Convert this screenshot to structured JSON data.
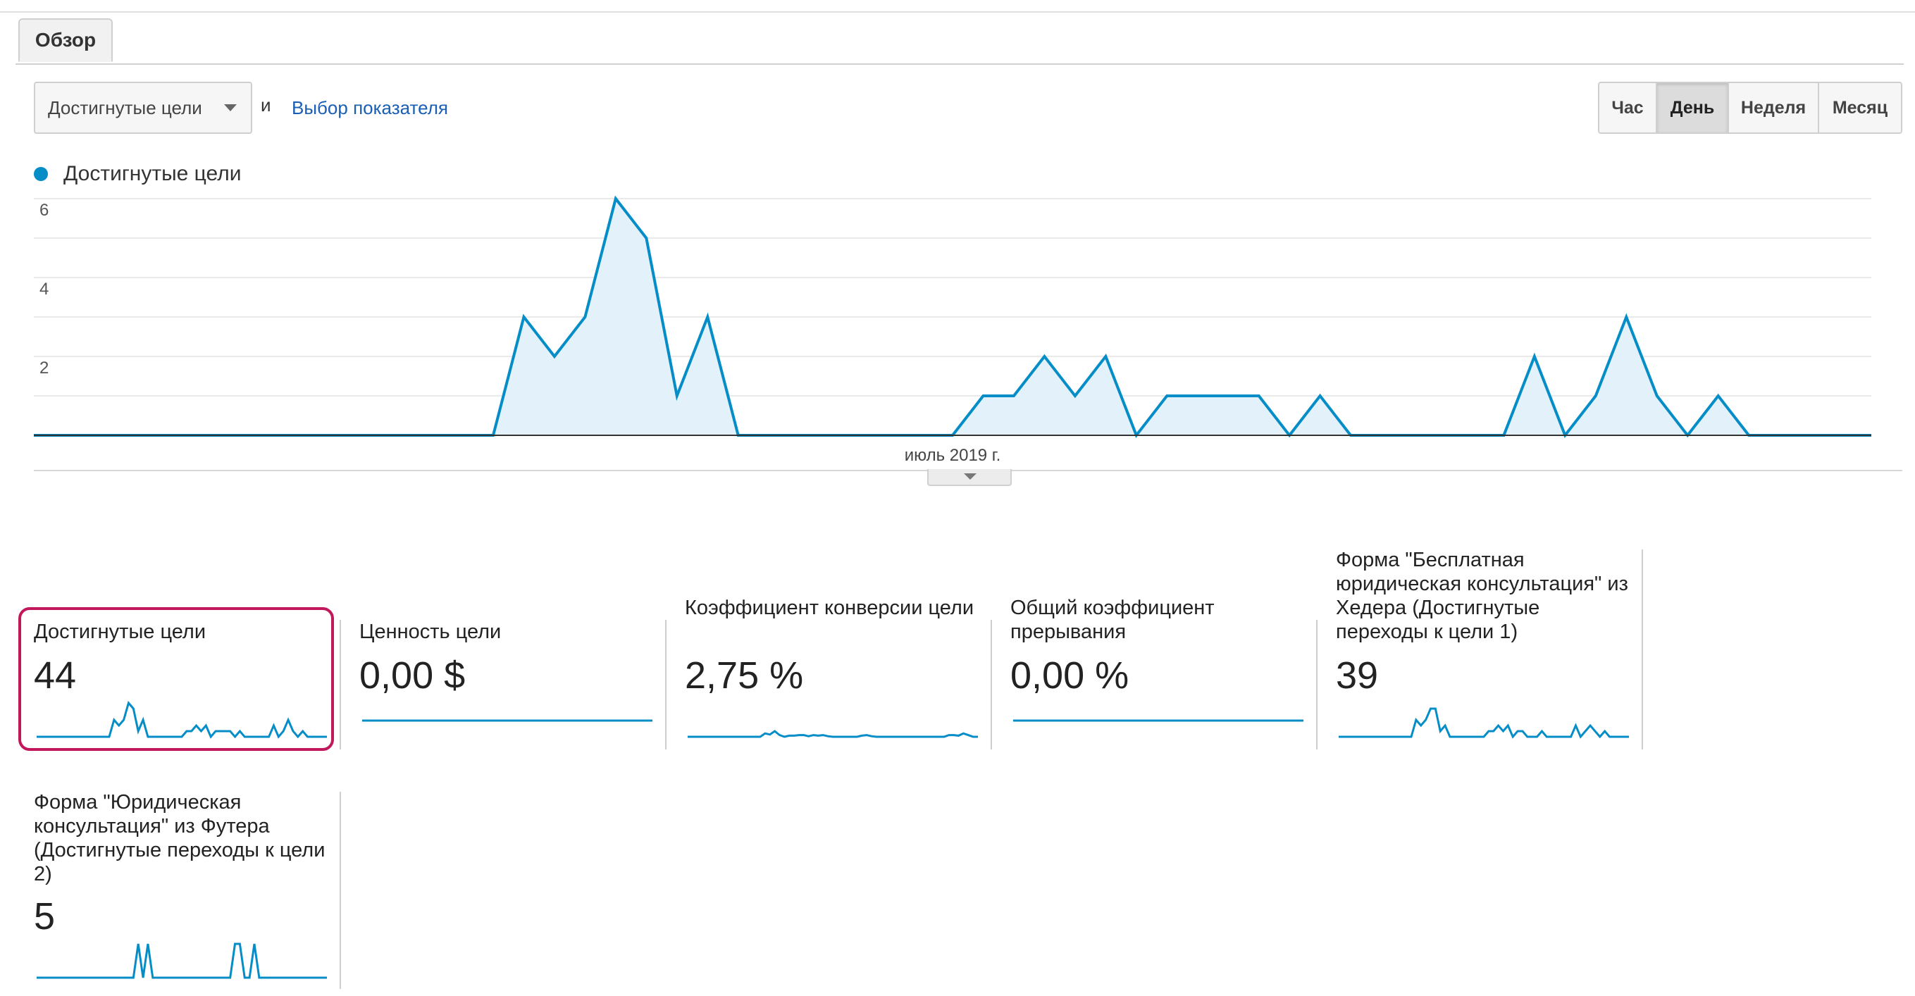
{
  "tabs": {
    "overview": "Обзор"
  },
  "toolbar": {
    "metric_dropdown": "Достигнутые цели",
    "and_label": "и",
    "select_metric_link": "Выбор показателя",
    "periods": [
      "Час",
      "День",
      "Неделя",
      "Месяц"
    ],
    "active_period": "День"
  },
  "colors": {
    "series": "#058dc7",
    "fill": "#e3f2fa",
    "highlight": "#c2185b"
  },
  "icons": {
    "dropdown": "chevron-down-icon",
    "legend": "legend-dot-icon",
    "collapse": "collapse-arrow-icon"
  },
  "chart_data": {
    "type": "area",
    "title": "",
    "series": [
      {
        "name": "Достигнутые цели",
        "values": [
          0,
          0,
          0,
          0,
          0,
          0,
          0,
          0,
          0,
          0,
          0,
          0,
          0,
          0,
          0,
          0,
          3,
          2,
          3,
          6,
          5,
          1,
          3,
          0,
          0,
          0,
          0,
          0,
          0,
          0,
          0,
          1,
          1,
          2,
          1,
          2,
          0,
          1,
          1,
          1,
          1,
          0,
          1,
          0,
          0,
          0,
          0,
          0,
          0,
          2,
          0,
          1,
          3,
          1,
          0,
          1,
          0,
          0,
          0,
          0,
          0
        ]
      }
    ],
    "x_label": "июль 2019 г.",
    "y_ticks": [
      "2",
      "4",
      "6"
    ],
    "ylim": [
      0,
      6
    ],
    "grid": true
  },
  "scorecards": [
    {
      "title": "Достигнутые цели",
      "value": "44",
      "spark": [
        0,
        0,
        0,
        0,
        0,
        0,
        0,
        0,
        0,
        0,
        0,
        0,
        0,
        0,
        0,
        0,
        3,
        2,
        3,
        6,
        5,
        1,
        3,
        0,
        0,
        0,
        0,
        0,
        0,
        0,
        0,
        1,
        1,
        2,
        1,
        2,
        0,
        1,
        1,
        1,
        1,
        0,
        1,
        0,
        0,
        0,
        0,
        0,
        0,
        2,
        0,
        1,
        3,
        1,
        0,
        1,
        0,
        0,
        0,
        0,
        0
      ],
      "spark_max": 6
    },
    {
      "title": "Ценность цели",
      "value": "0,00 $",
      "spark": [
        0,
        0,
        0,
        0,
        0,
        0,
        0,
        0,
        0,
        0,
        0,
        0,
        0,
        0,
        0,
        0,
        0,
        0,
        0,
        0
      ],
      "spark_max": 1,
      "spark_level": 0.55
    },
    {
      "title": "Коэффициент конверсии цели",
      "value": "2,75 %",
      "spark": [
        0,
        0,
        0,
        0,
        0,
        0,
        0,
        0,
        0,
        0,
        0,
        0,
        0,
        0,
        0,
        0,
        0.6,
        0.4,
        1,
        0.3,
        0,
        0.2,
        0.2,
        0.3,
        0.3,
        0.1,
        0.3,
        0.2,
        0.3,
        0.1,
        0,
        0,
        0,
        0,
        0,
        0,
        0.2,
        0.3,
        0.1,
        0,
        0,
        0,
        0,
        0,
        0,
        0,
        0,
        0,
        0,
        0,
        0,
        0,
        0,
        0,
        0.3,
        0.3,
        0.2,
        0.6,
        0.3,
        0,
        0
      ],
      "spark_max": 6
    },
    {
      "title": "Общий коэффициент прерывания",
      "value": "0,00 %",
      "spark": [
        0,
        0,
        0,
        0,
        0,
        0,
        0,
        0,
        0,
        0,
        0,
        0,
        0,
        0,
        0,
        0,
        0,
        0,
        0,
        0
      ],
      "spark_max": 1,
      "spark_level": 0.55
    },
    {
      "title": "Форма \"Бесплатная юридическая консультация\" из Хедера (Достигнутые переходы к цели 1)",
      "value": "39",
      "spark": [
        0,
        0,
        0,
        0,
        0,
        0,
        0,
        0,
        0,
        0,
        0,
        0,
        0,
        0,
        0,
        0,
        3,
        2,
        3,
        5,
        5,
        1,
        2,
        0,
        0,
        0,
        0,
        0,
        0,
        0,
        0,
        1,
        1,
        2,
        1,
        2,
        0,
        1,
        1,
        0,
        0,
        0,
        1,
        0,
        0,
        0,
        0,
        0,
        0,
        2,
        0,
        1,
        2,
        1,
        0,
        1,
        0,
        0,
        0,
        0,
        0
      ],
      "spark_max": 6
    },
    {
      "title": "Форма \"Юридическая консультация\" из Футера (Достигнутые переходы к цели 2)",
      "value": "5",
      "spark": [
        0,
        0,
        0,
        0,
        0,
        0,
        0,
        0,
        0,
        0,
        0,
        0,
        0,
        0,
        0,
        0,
        0,
        0,
        0,
        0,
        0,
        1,
        0,
        1,
        0,
        0,
        0,
        0,
        0,
        0,
        0,
        0,
        0,
        0,
        0,
        0,
        0,
        0,
        0,
        0,
        0,
        1,
        1,
        0,
        0,
        1,
        0,
        0,
        0,
        0,
        0,
        0,
        0,
        0,
        0,
        0,
        0,
        0,
        0,
        0,
        0
      ],
      "spark_max": 1
    }
  ]
}
